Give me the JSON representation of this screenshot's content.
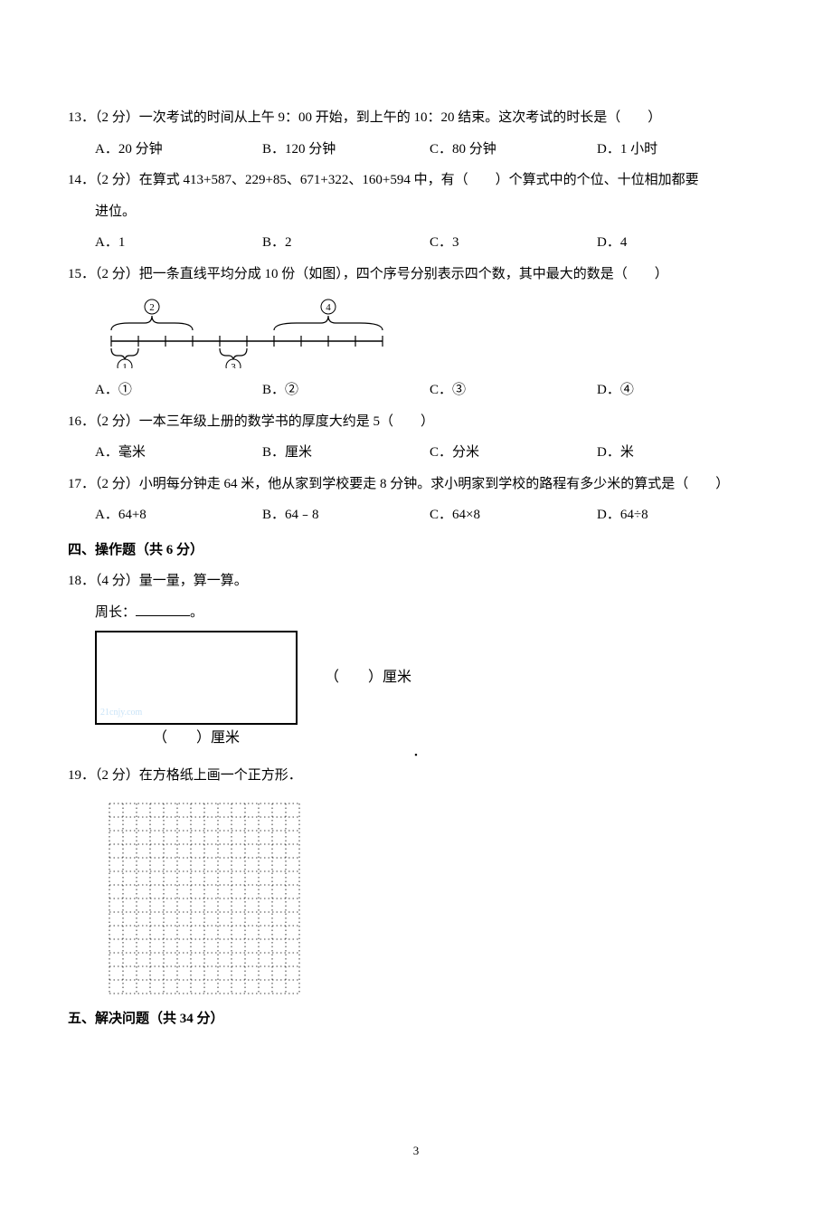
{
  "q13": {
    "line": "13．（2 分）一次考试的时间从上午 9：00 开始，到上午的 10：20 结束。这次考试的时长是（　　）",
    "A": "A．20 分钟",
    "B": "B．120 分钟",
    "C": "C．80 分钟",
    "D": "D．1 小时"
  },
  "q14": {
    "line1": "14．（2 分）在算式 413+587、229+85、671+322、160+594 中，有（　　）个算式中的个位、十位相加都要",
    "line2": "进位。",
    "A": "A．1",
    "B": "B．2",
    "C": "C．3",
    "D": "D．4"
  },
  "q15": {
    "line": "15．（2 分）把一条直线平均分成 10 份（如图），四个序号分别表示四个数，其中最大的数是（　　）",
    "labels": {
      "c1": "①",
      "c2": "②",
      "c3": "③",
      "c4": "④"
    },
    "A": "A．①",
    "B": "B．②",
    "C": "C．③",
    "D": "D．④"
  },
  "q16": {
    "line": "16．（2 分）一本三年级上册的数学书的厚度大约是 5（　　）",
    "A": "A．毫米",
    "B": "B．厘米",
    "C": "C．分米",
    "D": "D．米"
  },
  "q17": {
    "line": "17．（2 分）小明每分钟走 64 米，他从家到学校要走 8 分钟。求小明家到学校的路程有多少米的算式是（　　）",
    "A": "A．64+8",
    "B": "B．64﹣8",
    "C": "C．64×8",
    "D": "D．64÷8"
  },
  "sec4": "四、操作题（共 6 分）",
  "q18": {
    "line": "18．（4 分）量一量，算一算。",
    "perimeter_label": "周长：",
    "perimeter_suffix": "。",
    "watermark": "21cnjy.com",
    "cm_side": "（　　）厘米",
    "cm_under": "（　　）厘米"
  },
  "q19": {
    "line": "19．（2 分）在方格纸上画一个正方形．"
  },
  "sec5": "五、解决问题（共 34 分）",
  "center_dot": "▪",
  "page_num": "3"
}
